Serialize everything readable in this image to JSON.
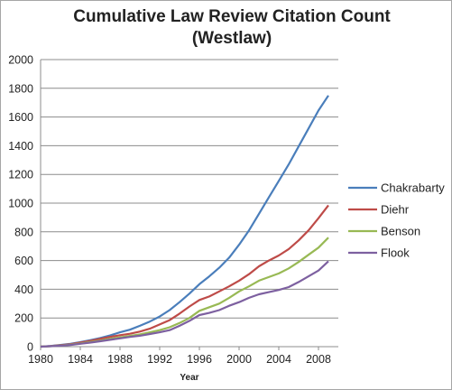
{
  "chart_data": {
    "type": "line",
    "title": [
      "Cumulative Law Review Citation Count",
      "(Westlaw)"
    ],
    "xlabel": "Year",
    "ylabel": "",
    "xlim": [
      1980,
      2010
    ],
    "ylim": [
      0,
      2000
    ],
    "x_ticks": [
      "1980",
      "1984",
      "1988",
      "1992",
      "1996",
      "2000",
      "2004",
      "2008"
    ],
    "y_ticks": [
      "0",
      "200",
      "400",
      "600",
      "800",
      "1000",
      "1200",
      "1400",
      "1600",
      "1800",
      "2000"
    ],
    "grid": "horizontal",
    "legend_position": "right",
    "x": [
      1980,
      1981,
      1982,
      1983,
      1984,
      1985,
      1986,
      1987,
      1988,
      1989,
      1990,
      1991,
      1992,
      1993,
      1994,
      1995,
      1996,
      1997,
      1998,
      1999,
      2000,
      2001,
      2002,
      2003,
      2004,
      2005,
      2006,
      2007,
      2008,
      2009
    ],
    "series": [
      {
        "name": "Chakrabarty",
        "color": "#4a7ebb",
        "values": [
          0,
          5,
          12,
          20,
          32,
          45,
          60,
          78,
          100,
          118,
          145,
          175,
          210,
          255,
          310,
          370,
          435,
          490,
          550,
          620,
          710,
          810,
          925,
          1040,
          1155,
          1270,
          1395,
          1520,
          1645,
          1750
        ]
      },
      {
        "name": "Diehr",
        "color": "#be4b48",
        "values": [
          0,
          4,
          10,
          17,
          28,
          40,
          55,
          68,
          80,
          90,
          105,
          125,
          155,
          185,
          230,
          280,
          325,
          350,
          385,
          420,
          460,
          505,
          560,
          600,
          635,
          680,
          740,
          810,
          895,
          985
        ]
      },
      {
        "name": "Benson",
        "color": "#98b954",
        "values": [
          0,
          3,
          8,
          14,
          22,
          32,
          42,
          55,
          65,
          75,
          85,
          100,
          115,
          135,
          165,
          200,
          250,
          275,
          300,
          340,
          385,
          420,
          460,
          485,
          510,
          545,
          590,
          640,
          690,
          760
        ]
      },
      {
        "name": "Flook",
        "color": "#7d60a0",
        "values": [
          0,
          3,
          7,
          12,
          20,
          28,
          38,
          48,
          58,
          68,
          76,
          88,
          100,
          115,
          145,
          180,
          220,
          235,
          255,
          285,
          310,
          340,
          365,
          380,
          395,
          415,
          450,
          490,
          530,
          595
        ]
      }
    ]
  }
}
